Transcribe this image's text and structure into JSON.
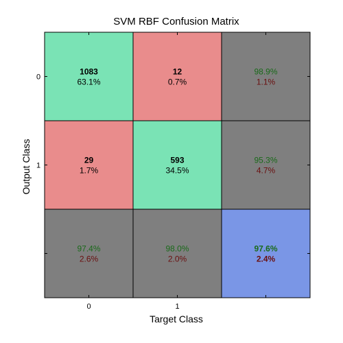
{
  "chart_data": {
    "type": "heatmap",
    "title": "SVM RBF Confusion Matrix",
    "xlabel": "Target Class",
    "ylabel": "Output Class",
    "x_tick_labels": [
      "0",
      "1"
    ],
    "y_tick_labels": [
      "0",
      "1"
    ],
    "counts": [
      [
        1083,
        12
      ],
      [
        29,
        593
      ]
    ],
    "percent_of_total": [
      [
        "63.1%",
        "0.7%"
      ],
      [
        "1.7%",
        "34.5%"
      ]
    ],
    "row_summary": [
      {
        "correct": "98.9%",
        "error": "1.1%"
      },
      {
        "correct": "95.3%",
        "error": "4.7%"
      }
    ],
    "column_summary": [
      {
        "correct": "97.4%",
        "error": "2.6%"
      },
      {
        "correct": "98.0%",
        "error": "2.0%"
      }
    ],
    "overall": {
      "correct": "97.6%",
      "error": "2.4%"
    },
    "grid": false,
    "colors": {
      "correct_cell": "#7ae3b5",
      "error_cell": "#e98c8c",
      "summary_cell": "#7f7f7f",
      "overall_cell": "#7a96e6",
      "correct_text": "#1a6a1a",
      "error_text": "#6a0f0f",
      "cell_text": "#000000"
    }
  }
}
